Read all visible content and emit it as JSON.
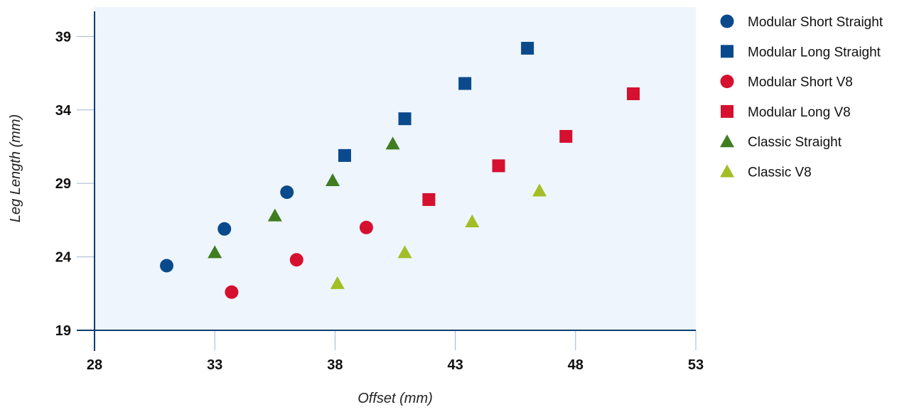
{
  "chart_data": {
    "type": "scatter",
    "title": "",
    "xlabel": "Offset (mm)",
    "ylabel": "Leg Length (mm)",
    "xlim": [
      28,
      53
    ],
    "ylim": [
      19,
      41
    ],
    "xticks": [
      28,
      33,
      38,
      43,
      48,
      53
    ],
    "yticks": [
      19,
      24,
      29,
      34,
      39
    ],
    "grid": false,
    "legend_position": "right",
    "plot_background": "#eef5fc",
    "series": [
      {
        "name": "Modular Short Straight",
        "marker": "circle",
        "color": "#0a4a8c",
        "points": [
          [
            31.0,
            23.4
          ],
          [
            33.4,
            25.9
          ],
          [
            36.0,
            28.4
          ]
        ]
      },
      {
        "name": "Modular Long Straight",
        "marker": "square",
        "color": "#0a4a8c",
        "points": [
          [
            38.4,
            30.9
          ],
          [
            40.9,
            33.4
          ],
          [
            43.4,
            35.8
          ],
          [
            46.0,
            38.2
          ]
        ]
      },
      {
        "name": "Modular Short V8",
        "marker": "circle",
        "color": "#d6102f",
        "points": [
          [
            33.7,
            21.6
          ],
          [
            36.4,
            23.8
          ],
          [
            39.3,
            26.0
          ]
        ]
      },
      {
        "name": "Modular Long V8",
        "marker": "square",
        "color": "#d6102f",
        "points": [
          [
            41.9,
            27.9
          ],
          [
            44.8,
            30.2
          ],
          [
            47.6,
            32.2
          ],
          [
            50.4,
            35.1
          ]
        ]
      },
      {
        "name": "Classic Straight",
        "marker": "triangle",
        "color": "#3f7d20",
        "points": [
          [
            33.0,
            24.3
          ],
          [
            35.5,
            26.8
          ],
          [
            37.9,
            29.2
          ],
          [
            40.4,
            31.7
          ]
        ]
      },
      {
        "name": "Classic V8",
        "marker": "triangle",
        "color": "#a2be24",
        "points": [
          [
            38.1,
            22.2
          ],
          [
            40.9,
            24.3
          ],
          [
            43.7,
            26.4
          ],
          [
            46.5,
            28.5
          ]
        ]
      }
    ]
  }
}
